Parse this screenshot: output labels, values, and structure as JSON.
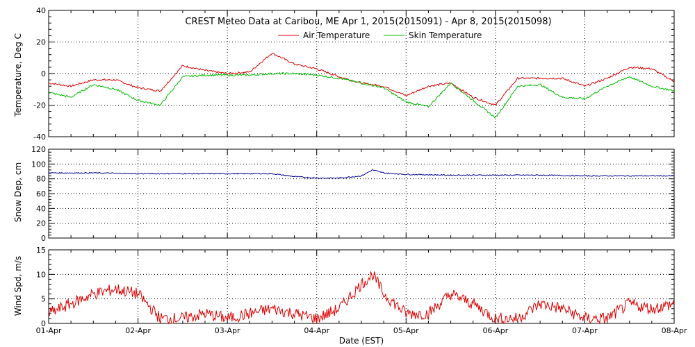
{
  "title": "CREST Meteo Data at Caribou, ME   Apr  1, 2015(2015091) - Apr  8, 2015(2015098)",
  "colors": {
    "air": "#dd0000",
    "skin": "#00bb00",
    "snow": "#00008b",
    "wind": "#dd0000",
    "frame": "#000000",
    "grid": "#000000"
  },
  "chart_data": [
    {
      "type": "line",
      "ylabel": "Temperature, Deg C",
      "ylim": [
        -40,
        40
      ],
      "yticks": [
        -40,
        -20,
        0,
        20,
        40
      ],
      "xlim": [
        "01-Apr",
        "08-Apr"
      ],
      "x": [
        "01-Apr 00:00",
        "01-Apr 06:00",
        "01-Apr 12:00",
        "01-Apr 18:00",
        "02-Apr 00:00",
        "02-Apr 06:00",
        "02-Apr 12:00",
        "02-Apr 18:00",
        "03-Apr 00:00",
        "03-Apr 06:00",
        "03-Apr 12:00",
        "03-Apr 18:00",
        "04-Apr 00:00",
        "04-Apr 06:00",
        "04-Apr 12:00",
        "04-Apr 18:00",
        "05-Apr 00:00",
        "05-Apr 06:00",
        "05-Apr 12:00",
        "05-Apr 18:00",
        "06-Apr 00:00",
        "06-Apr 06:00",
        "06-Apr 12:00",
        "06-Apr 18:00",
        "07-Apr 00:00",
        "07-Apr 06:00",
        "07-Apr 12:00",
        "07-Apr 18:00",
        "08-Apr 00:00"
      ],
      "series": [
        {
          "name": "Air Temperature",
          "color": "#dd0000",
          "values": [
            -6,
            -8,
            -4,
            -4,
            -9,
            -11,
            5,
            2,
            0,
            1,
            13,
            6,
            3,
            -2,
            -6,
            -8,
            -14,
            -8,
            -6,
            -15,
            -20,
            -3,
            -3,
            -3,
            -8,
            -3,
            4,
            3,
            -5
          ]
        },
        {
          "name": "Skin Temperature",
          "color": "#00bb00",
          "values": [
            -12,
            -15,
            -7,
            -10,
            -17,
            -20,
            -2,
            -1,
            -1,
            -1,
            0,
            0,
            -1,
            -3,
            -6,
            -9,
            -18,
            -21,
            -6,
            -17,
            -28,
            -8,
            -7,
            -15,
            -16,
            -8,
            -2,
            -8,
            -11
          ]
        }
      ]
    },
    {
      "type": "line",
      "ylabel": "Snow Dep, cm",
      "ylim": [
        0,
        120
      ],
      "yticks": [
        0,
        20,
        40,
        60,
        80,
        100,
        120
      ],
      "x": [
        "01-Apr 00:00",
        "01-Apr 12:00",
        "02-Apr 00:00",
        "02-Apr 12:00",
        "03-Apr 00:00",
        "03-Apr 12:00",
        "03-Apr 18:00",
        "04-Apr 00:00",
        "04-Apr 06:00",
        "04-Apr 12:00",
        "04-Apr 15:00",
        "04-Apr 18:00",
        "05-Apr 00:00",
        "05-Apr 12:00",
        "06-Apr 00:00",
        "06-Apr 12:00",
        "07-Apr 00:00",
        "07-Apr 12:00",
        "08-Apr 00:00"
      ],
      "series": [
        {
          "name": "",
          "color": "#00008b",
          "values": [
            88,
            88,
            87,
            87,
            87,
            87,
            83,
            81,
            81,
            84,
            92,
            88,
            86,
            85,
            85,
            85,
            84,
            84,
            84
          ]
        }
      ]
    },
    {
      "type": "line",
      "ylabel": "Wind Spd, m/s",
      "xlabel": "Date (EST)",
      "ylim": [
        0,
        15
      ],
      "yticks": [
        0,
        5,
        10,
        15
      ],
      "xticks": [
        "01-Apr",
        "02-Apr",
        "03-Apr",
        "04-Apr",
        "05-Apr",
        "06-Apr",
        "07-Apr",
        "08-Apr"
      ],
      "x": [
        "01-Apr 00:00",
        "01-Apr 06:00",
        "01-Apr 12:00",
        "01-Apr 18:00",
        "02-Apr 00:00",
        "02-Apr 06:00",
        "02-Apr 12:00",
        "02-Apr 18:00",
        "03-Apr 00:00",
        "03-Apr 06:00",
        "03-Apr 12:00",
        "03-Apr 18:00",
        "04-Apr 00:00",
        "04-Apr 06:00",
        "04-Apr 12:00",
        "04-Apr 15:00",
        "04-Apr 18:00",
        "05-Apr 00:00",
        "05-Apr 06:00",
        "05-Apr 12:00",
        "05-Apr 18:00",
        "06-Apr 00:00",
        "06-Apr 06:00",
        "06-Apr 12:00",
        "06-Apr 18:00",
        "07-Apr 00:00",
        "07-Apr 06:00",
        "07-Apr 12:00",
        "07-Apr 18:00",
        "08-Apr 00:00"
      ],
      "series": [
        {
          "name": "",
          "color": "#dd0000",
          "values": [
            2,
            4,
            6,
            7,
            6,
            1,
            1,
            2,
            1,
            2,
            3,
            2,
            1,
            3,
            8,
            10,
            6,
            2,
            2,
            6,
            4,
            1,
            1,
            4,
            3,
            1,
            1,
            4,
            3,
            4
          ]
        }
      ]
    }
  ]
}
